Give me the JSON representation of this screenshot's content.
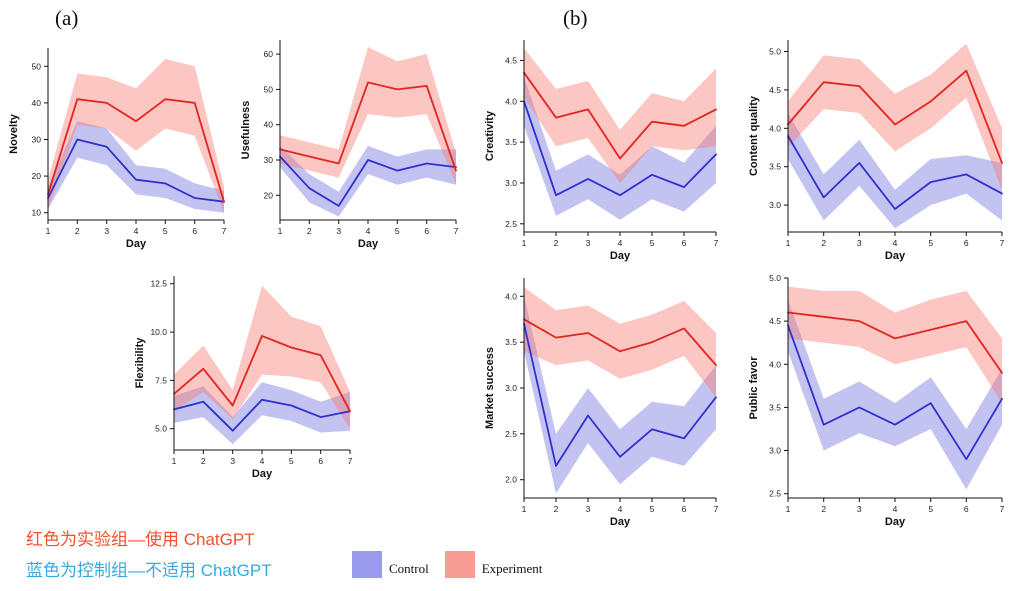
{
  "panel_labels": {
    "a": "(a)",
    "b": "(b)"
  },
  "colors": {
    "experiment_line": "#e02521",
    "experiment_band": "#f8766d",
    "control_line": "#3030cf",
    "control_band": "#7070dd",
    "control_swatch": "#9a9aea",
    "experiment_swatch": "#f89d94",
    "note_red": "#f4502e",
    "note_blue": "#35aadf",
    "axis": "#111111"
  },
  "notes": {
    "line1": "红色为实验组—使用 ChatGPT",
    "line2": "蓝色为控制组—不适用 ChatGPT"
  },
  "legend": {
    "control_label": "Control",
    "experiment_label": "Experiment"
  },
  "chart_data": [
    {
      "id": "novelty",
      "type": "line",
      "title": "",
      "xlabel": "Day",
      "ylabel": "Novelty",
      "x": [
        1,
        2,
        3,
        4,
        5,
        6,
        7
      ],
      "xtick_labels": [
        "1",
        "2",
        "3",
        "4",
        "5",
        "6",
        "7"
      ],
      "ylim": [
        8,
        55
      ],
      "yticks": [
        10,
        20,
        30,
        40,
        50
      ],
      "ytick_labels": [
        "10",
        "20",
        "30",
        "40",
        "50"
      ],
      "grid": false,
      "legend_position": "none",
      "series": [
        {
          "key": "control",
          "name": "Control",
          "values": [
            14,
            30,
            28,
            19,
            18,
            14,
            13
          ],
          "upper": [
            17,
            35,
            33,
            23,
            22,
            18,
            16
          ],
          "lower": [
            11,
            25,
            23,
            15,
            14,
            11,
            10
          ]
        },
        {
          "key": "experiment",
          "name": "Experiment",
          "values": [
            15,
            41,
            40,
            35,
            41,
            40,
            13
          ],
          "upper": [
            19,
            48,
            47,
            44,
            52,
            50,
            17
          ],
          "lower": [
            11,
            34,
            33,
            27,
            33,
            31,
            10
          ]
        }
      ]
    },
    {
      "id": "usefulness",
      "type": "line",
      "title": "",
      "xlabel": "Day",
      "ylabel": "Usefulness",
      "x": [
        1,
        2,
        3,
        4,
        5,
        6,
        7
      ],
      "xtick_labels": [
        "1",
        "2",
        "3",
        "4",
        "5",
        "6",
        "7"
      ],
      "ylim": [
        13,
        64
      ],
      "yticks": [
        20,
        30,
        40,
        50,
        60
      ],
      "ytick_labels": [
        "20",
        "30",
        "40",
        "50",
        "60"
      ],
      "grid": false,
      "legend_position": "none",
      "series": [
        {
          "key": "control",
          "name": "Control",
          "values": [
            31,
            22,
            17,
            30,
            27,
            29,
            28
          ],
          "upper": [
            34,
            26,
            21,
            34,
            31,
            33,
            33
          ],
          "lower": [
            28,
            18,
            14,
            26,
            23,
            25,
            23
          ]
        },
        {
          "key": "experiment",
          "name": "Experiment",
          "values": [
            33,
            31,
            29,
            52,
            50,
            51,
            27
          ],
          "upper": [
            37,
            35,
            33,
            62,
            58,
            60,
            32
          ],
          "lower": [
            29,
            27,
            25,
            43,
            42,
            43,
            23
          ]
        }
      ]
    },
    {
      "id": "flexibility",
      "type": "line",
      "title": "",
      "xlabel": "Day",
      "ylabel": "Flexibility",
      "x": [
        1,
        2,
        3,
        4,
        5,
        6,
        7
      ],
      "xtick_labels": [
        "1",
        "2",
        "3",
        "4",
        "5",
        "6",
        "7"
      ],
      "ylim": [
        3.9,
        12.9
      ],
      "yticks": [
        5.0,
        7.5,
        10.0,
        12.5
      ],
      "ytick_labels": [
        "5.0",
        "7.5",
        "10.0",
        "12.5"
      ],
      "grid": false,
      "legend_position": "none",
      "series": [
        {
          "key": "control",
          "name": "Control",
          "values": [
            6.0,
            6.4,
            4.9,
            6.5,
            6.2,
            5.6,
            5.9
          ],
          "upper": [
            6.7,
            7.2,
            5.6,
            7.4,
            7.0,
            6.4,
            6.9
          ],
          "lower": [
            5.3,
            5.6,
            4.2,
            5.7,
            5.4,
            4.8,
            4.9
          ]
        },
        {
          "key": "experiment",
          "name": "Experiment",
          "values": [
            6.8,
            8.1,
            6.2,
            9.8,
            9.2,
            8.8,
            5.9
          ],
          "upper": [
            7.8,
            9.3,
            7.0,
            12.4,
            10.8,
            10.3,
            6.9
          ],
          "lower": [
            5.9,
            6.9,
            5.5,
            7.8,
            7.7,
            7.4,
            5.0
          ]
        }
      ]
    },
    {
      "id": "creativity",
      "type": "line",
      "title": "",
      "xlabel": "Day",
      "ylabel": "Creativity",
      "x": [
        1,
        2,
        3,
        4,
        5,
        6,
        7
      ],
      "xtick_labels": [
        "1",
        "2",
        "3",
        "4",
        "5",
        "6",
        "7"
      ],
      "ylim": [
        2.4,
        4.75
      ],
      "yticks": [
        2.5,
        3.0,
        3.5,
        4.0,
        4.5
      ],
      "ytick_labels": [
        "2.5",
        "3.0",
        "3.5",
        "4.0",
        "4.5"
      ],
      "grid": false,
      "legend_position": "none",
      "series": [
        {
          "key": "control",
          "name": "Control",
          "values": [
            4.0,
            2.85,
            3.05,
            2.85,
            3.1,
            2.95,
            3.35
          ],
          "upper": [
            4.3,
            3.15,
            3.35,
            3.1,
            3.45,
            3.25,
            3.7
          ],
          "lower": [
            3.7,
            2.6,
            2.8,
            2.55,
            2.8,
            2.65,
            3.0
          ]
        },
        {
          "key": "experiment",
          "name": "Experiment",
          "values": [
            4.35,
            3.8,
            3.9,
            3.3,
            3.75,
            3.7,
            3.9
          ],
          "upper": [
            4.65,
            4.15,
            4.25,
            3.65,
            4.1,
            4.0,
            4.4
          ],
          "lower": [
            4.05,
            3.45,
            3.55,
            3.0,
            3.45,
            3.4,
            3.45
          ]
        }
      ]
    },
    {
      "id": "contentquality",
      "type": "line",
      "title": "",
      "xlabel": "Day",
      "ylabel": "Content quality",
      "x": [
        1,
        2,
        3,
        4,
        5,
        6,
        7
      ],
      "xtick_labels": [
        "1",
        "2",
        "3",
        "4",
        "5",
        "6",
        "7"
      ],
      "ylim": [
        2.65,
        5.15
      ],
      "yticks": [
        3.0,
        3.5,
        4.0,
        4.5,
        5.0
      ],
      "ytick_labels": [
        "3.0",
        "3.5",
        "4.0",
        "4.5",
        "5.0"
      ],
      "grid": false,
      "legend_position": "none",
      "series": [
        {
          "key": "control",
          "name": "Control",
          "values": [
            3.9,
            3.1,
            3.55,
            2.95,
            3.3,
            3.4,
            3.15
          ],
          "upper": [
            4.2,
            3.4,
            3.85,
            3.2,
            3.6,
            3.65,
            3.55
          ],
          "lower": [
            3.6,
            2.8,
            3.25,
            2.7,
            3.0,
            3.15,
            2.8
          ]
        },
        {
          "key": "experiment",
          "name": "Experiment",
          "values": [
            4.05,
            4.6,
            4.55,
            4.05,
            4.35,
            4.75,
            3.55
          ],
          "upper": [
            4.35,
            4.95,
            4.9,
            4.45,
            4.7,
            5.1,
            4.0
          ],
          "lower": [
            3.75,
            4.25,
            4.2,
            3.7,
            4.0,
            4.4,
            3.2
          ]
        }
      ]
    },
    {
      "id": "marketsuccess",
      "type": "line",
      "title": "",
      "xlabel": "Day",
      "ylabel": "Market success",
      "x": [
        1,
        2,
        3,
        4,
        5,
        6,
        7
      ],
      "xtick_labels": [
        "1",
        "2",
        "3",
        "4",
        "5",
        "6",
        "7"
      ],
      "ylim": [
        1.8,
        4.2
      ],
      "yticks": [
        2.0,
        2.5,
        3.0,
        3.5,
        4.0
      ],
      "ytick_labels": [
        "2.0",
        "2.5",
        "3.0",
        "3.5",
        "4.0"
      ],
      "grid": false,
      "legend_position": "none",
      "series": [
        {
          "key": "control",
          "name": "Control",
          "values": [
            3.7,
            2.15,
            2.7,
            2.25,
            2.55,
            2.45,
            2.9
          ],
          "upper": [
            4.0,
            2.5,
            3.0,
            2.55,
            2.85,
            2.8,
            3.25
          ],
          "lower": [
            3.4,
            1.85,
            2.4,
            1.95,
            2.25,
            2.15,
            2.55
          ]
        },
        {
          "key": "experiment",
          "name": "Experiment",
          "values": [
            3.75,
            3.55,
            3.6,
            3.4,
            3.5,
            3.65,
            3.25
          ],
          "upper": [
            4.1,
            3.85,
            3.9,
            3.7,
            3.8,
            3.95,
            3.6
          ],
          "lower": [
            3.4,
            3.25,
            3.3,
            3.1,
            3.2,
            3.35,
            2.9
          ]
        }
      ]
    },
    {
      "id": "publicfavor",
      "type": "line",
      "title": "",
      "xlabel": "Day",
      "ylabel": "Public favor",
      "x": [
        1,
        2,
        3,
        4,
        5,
        6,
        7
      ],
      "xtick_labels": [
        "1",
        "2",
        "3",
        "4",
        "5",
        "6",
        "7"
      ],
      "ylim": [
        2.45,
        5.0
      ],
      "yticks": [
        2.5,
        3.0,
        3.5,
        4.0,
        4.5,
        5.0
      ],
      "ytick_labels": [
        "2.5",
        "3.0",
        "3.5",
        "4.0",
        "4.5",
        "5.0"
      ],
      "grid": false,
      "legend_position": "none",
      "series": [
        {
          "key": "control",
          "name": "Control",
          "values": [
            4.45,
            3.3,
            3.5,
            3.3,
            3.55,
            2.9,
            3.6
          ],
          "upper": [
            4.75,
            3.6,
            3.8,
            3.55,
            3.85,
            3.25,
            3.95
          ],
          "lower": [
            4.15,
            3.0,
            3.2,
            3.05,
            3.25,
            2.55,
            3.3
          ]
        },
        {
          "key": "experiment",
          "name": "Experiment",
          "values": [
            4.6,
            4.55,
            4.5,
            4.3,
            4.4,
            4.5,
            3.9
          ],
          "upper": [
            4.9,
            4.85,
            4.85,
            4.6,
            4.75,
            4.85,
            4.3
          ],
          "lower": [
            4.3,
            4.25,
            4.2,
            4.0,
            4.1,
            4.2,
            3.55
          ]
        }
      ]
    }
  ]
}
